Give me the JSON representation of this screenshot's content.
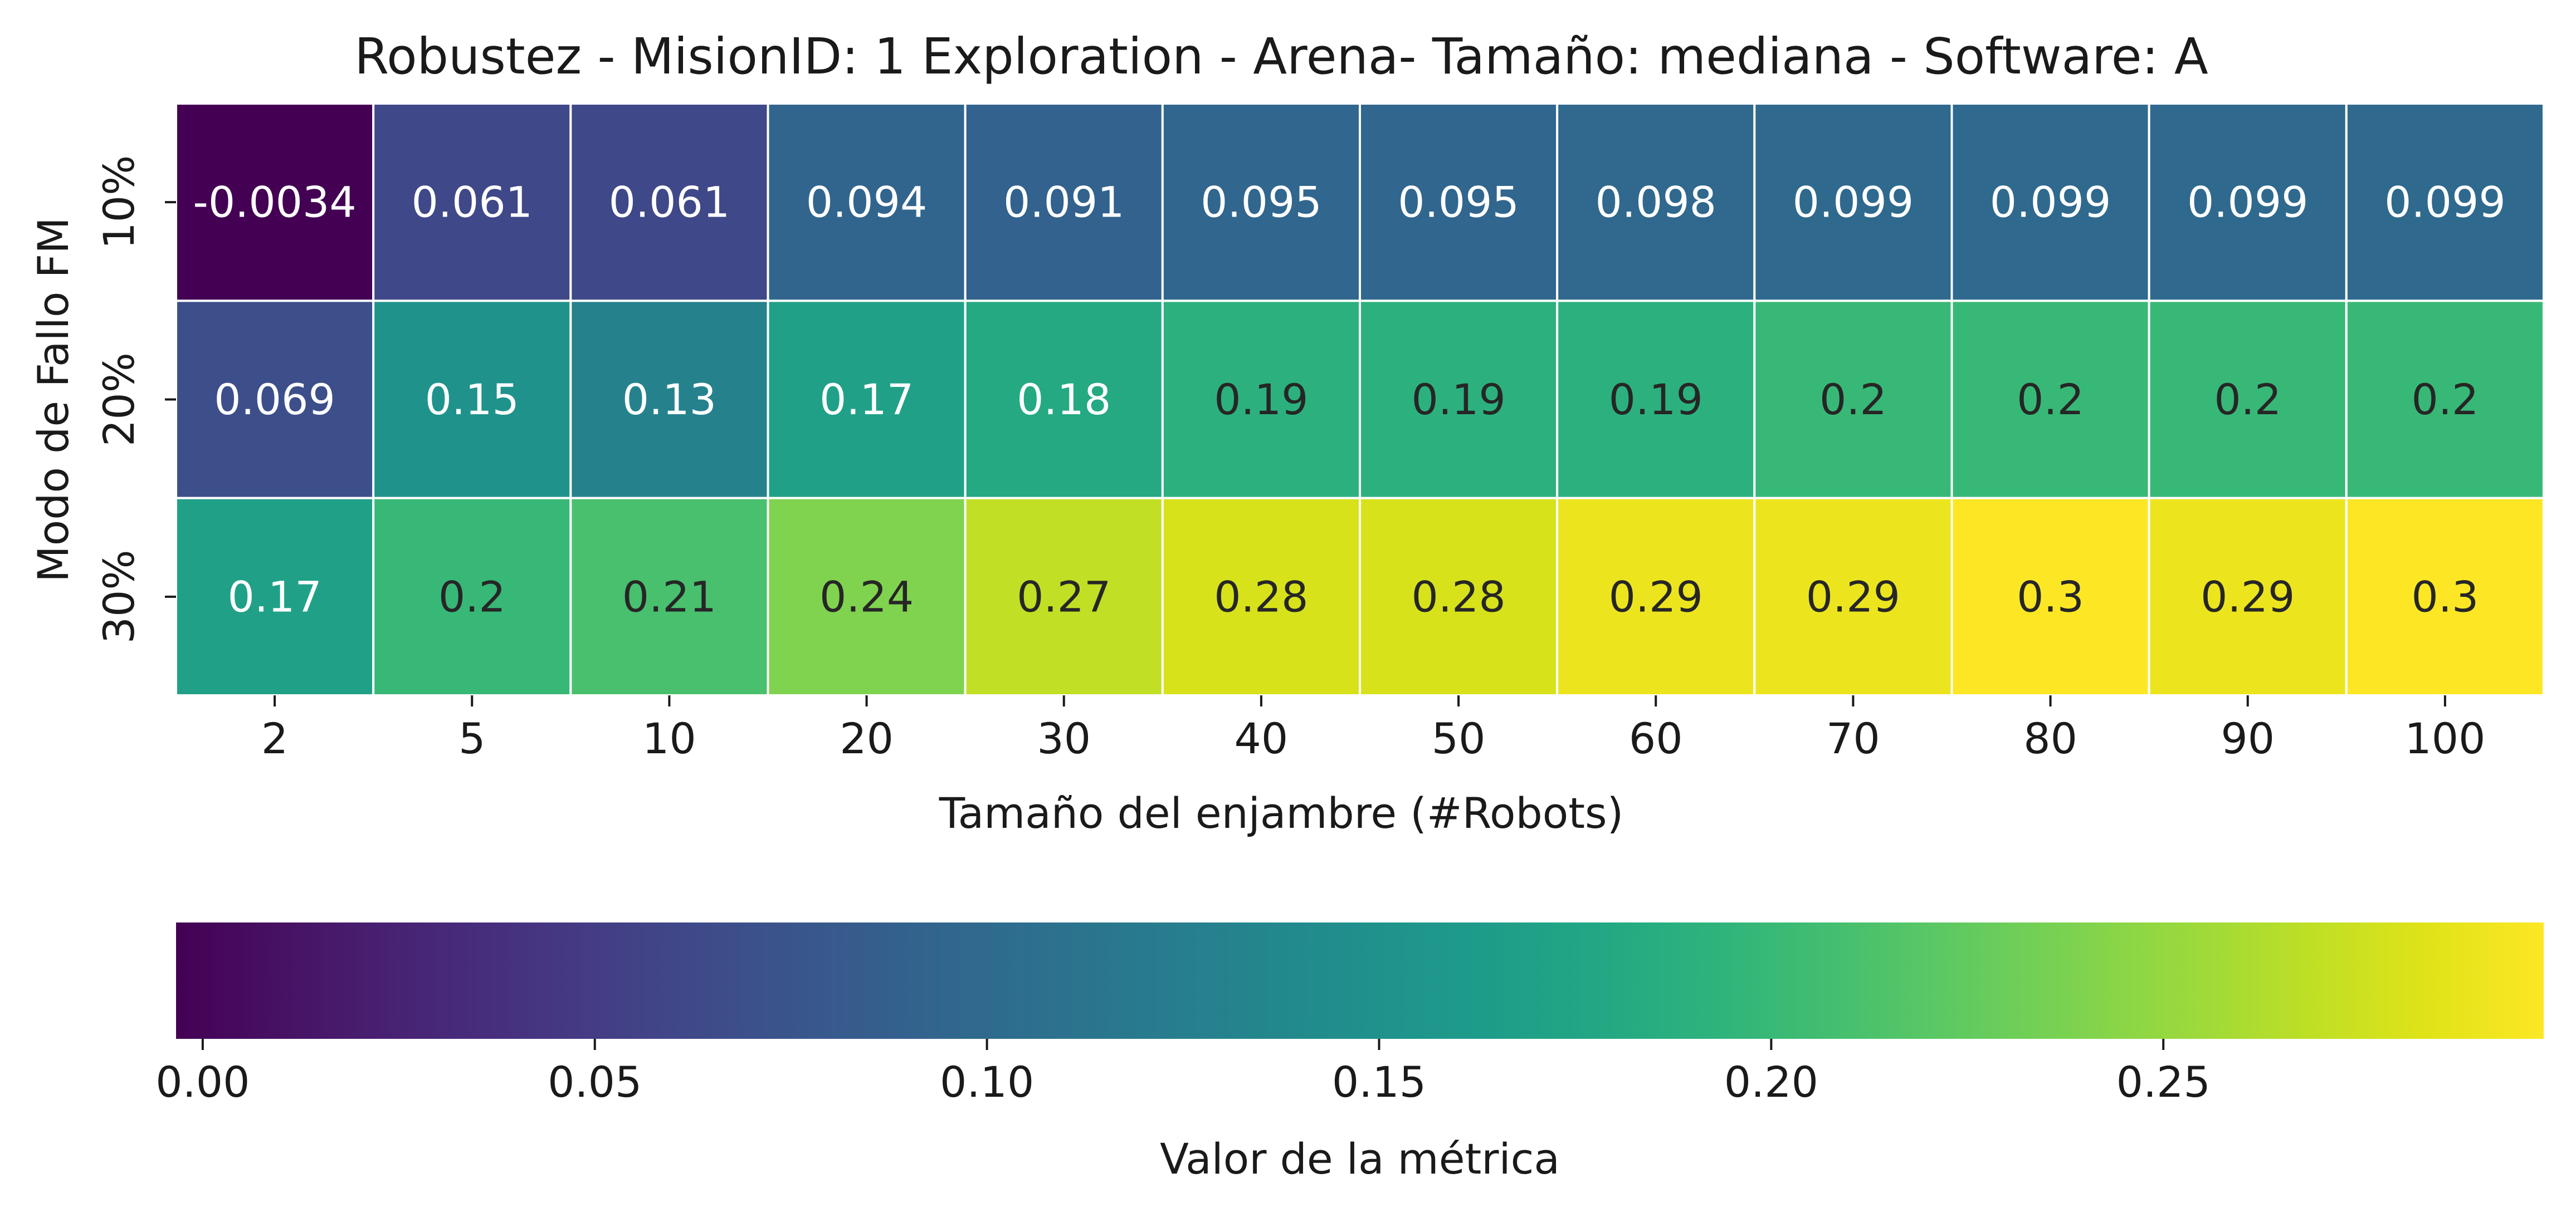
{
  "chart_data": {
    "type": "heatmap",
    "title": "Robustez - MisionID: 1 Exploration - Arena- Tamaño: mediana - Software: A",
    "xlabel": "Tamaño del enjambre (#Robots)",
    "ylabel": "Modo de Fallo FM",
    "x_categories": [
      "2",
      "5",
      "10",
      "20",
      "30",
      "40",
      "50",
      "60",
      "70",
      "80",
      "90",
      "100"
    ],
    "y_categories": [
      "10%",
      "20%",
      "30%"
    ],
    "values": [
      [
        -0.0034,
        0.061,
        0.061,
        0.094,
        0.091,
        0.095,
        0.095,
        0.098,
        0.099,
        0.099,
        0.099,
        0.099
      ],
      [
        0.069,
        0.15,
        0.13,
        0.17,
        0.18,
        0.19,
        0.19,
        0.19,
        0.2,
        0.2,
        0.2,
        0.2
      ],
      [
        0.17,
        0.2,
        0.21,
        0.24,
        0.27,
        0.28,
        0.28,
        0.29,
        0.29,
        0.3,
        0.29,
        0.3
      ]
    ],
    "value_labels": [
      [
        "-0.0034",
        "0.061",
        "0.061",
        "0.094",
        "0.091",
        "0.095",
        "0.095",
        "0.098",
        "0.099",
        "0.099",
        "0.099",
        "0.099"
      ],
      [
        "0.069",
        "0.15",
        "0.13",
        "0.17",
        "0.18",
        "0.19",
        "0.19",
        "0.19",
        "0.2",
        "0.2",
        "0.2",
        "0.2"
      ],
      [
        "0.17",
        "0.2",
        "0.21",
        "0.24",
        "0.27",
        "0.28",
        "0.28",
        "0.29",
        "0.29",
        "0.3",
        "0.29",
        "0.3"
      ]
    ],
    "colormap": "viridis",
    "color_range": [
      -0.0034,
      0.2985
    ],
    "colorbar": {
      "orientation": "horizontal",
      "position": "bottom",
      "label": "Valor de la métrica",
      "ticks": [
        0.0,
        0.05,
        0.1,
        0.15,
        0.2,
        0.25
      ],
      "tick_labels": [
        "0.00",
        "0.05",
        "0.10",
        "0.15",
        "0.20",
        "0.25"
      ]
    },
    "grid_line_color": "#ffffff"
  }
}
